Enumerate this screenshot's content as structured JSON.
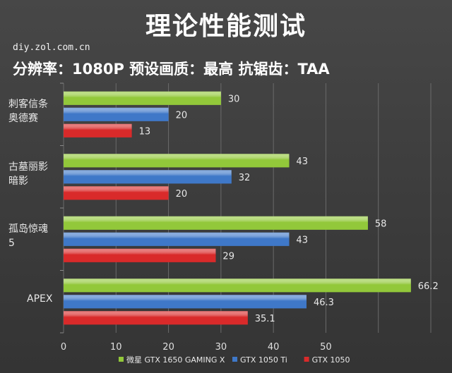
{
  "chart_data": {
    "type": "bar",
    "orientation": "horizontal",
    "title": "理论性能测试",
    "source": "diy.zol.com.cn",
    "subtitle": "分辨率：1080P 预设画质：最高 抗锯齿：TAA",
    "categories": [
      {
        "lines": [
          "刺客信条",
          "奥德赛"
        ]
      },
      {
        "lines": [
          "古墓丽影",
          "暗影"
        ]
      },
      {
        "lines": [
          "孤岛惊魂",
          "5"
        ]
      },
      {
        "lines": [
          "APEX"
        ]
      }
    ],
    "series": [
      {
        "name": "微星 GTX 1650 GAMING X",
        "color": "#92c83a",
        "values": [
          30,
          43,
          58,
          66.2
        ]
      },
      {
        "name": "GTX 1050 Ti",
        "color": "#3f78c8",
        "values": [
          20,
          32,
          43,
          46.3
        ]
      },
      {
        "name": "GTX 1050",
        "color": "#d92a2a",
        "values": [
          13,
          20,
          29,
          35.1
        ]
      }
    ],
    "value_labels": [
      [
        "30",
        "43",
        "58",
        "66.2"
      ],
      [
        "20",
        "32",
        "43",
        "46.3"
      ],
      [
        "13",
        "20",
        "29",
        "35.1"
      ]
    ],
    "xticks": [
      "0",
      "10",
      "20",
      "30",
      "40",
      "50"
    ],
    "xlim": [
      0,
      70
    ],
    "grid": true,
    "legend_position": "bottom"
  }
}
